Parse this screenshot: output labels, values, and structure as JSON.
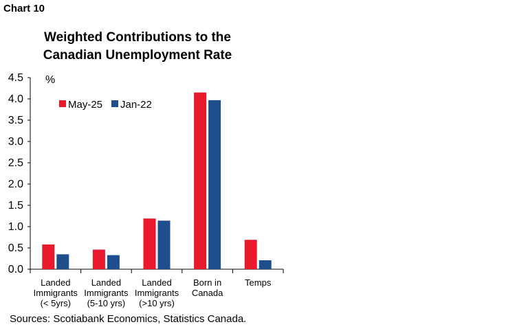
{
  "header": {
    "chart_label": "Chart 10"
  },
  "chart_data": {
    "type": "bar",
    "title_lines": [
      "Weighted Contributions to the",
      "Canadian Unemployment Rate"
    ],
    "unit": "%",
    "categories": [
      [
        "Landed",
        "Immigrants",
        "(< 5yrs)"
      ],
      [
        "Landed",
        "Immigrants",
        "(5-10 yrs)"
      ],
      [
        "Landed",
        "Immigrants",
        "(>10 yrs)"
      ],
      [
        "Born in",
        "Canada"
      ],
      [
        "Temps"
      ]
    ],
    "series": [
      {
        "name": "May-25",
        "color": "#e8192c",
        "values": [
          0.58,
          0.46,
          1.19,
          4.15,
          0.69
        ]
      },
      {
        "name": "Jan-22",
        "color": "#1f4e8c",
        "values": [
          0.35,
          0.33,
          1.14,
          3.97,
          0.21
        ]
      }
    ],
    "ylim": [
      0,
      4.5
    ],
    "yticks": [
      "0.0",
      "0.5",
      "1.0",
      "1.5",
      "2.0",
      "2.5",
      "3.0",
      "3.5",
      "4.0",
      "4.5"
    ],
    "grid": false,
    "legend_position": "top-left"
  },
  "footer": {
    "source": "Sources: Scotiabank Economics, Statistics Canada."
  }
}
